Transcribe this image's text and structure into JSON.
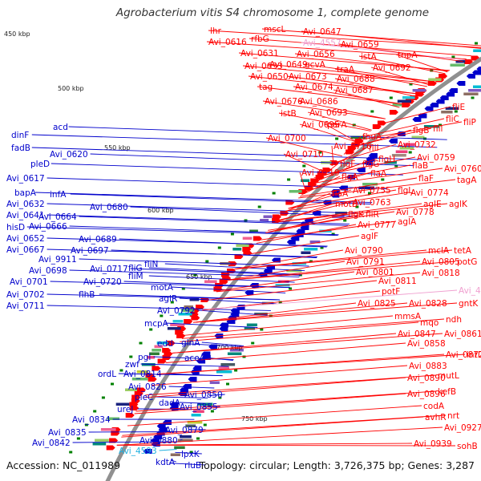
{
  "title": "Agrobacterium vitis S4 chromosome 1, complete genome",
  "footer": {
    "accession": "Accession: NC_011989",
    "stats": "Topology: circular; Length: 3,726,375 bp; Genes: 3,287"
  },
  "colors": {
    "forward_strand": "#ff0000",
    "reverse_strand": "#0000cc",
    "highlight_right": "#f0a0d0",
    "highlight_left": "#20b0e0",
    "backbone": "#909090",
    "tick_marks": "#008000"
  },
  "kbp_labels": [
    "450 kbp",
    "500 kbp",
    "550 kbp",
    "600 kbp",
    "650 kbp",
    "700 kbp",
    "750 kbp"
  ],
  "left_genes": [
    "dinF",
    "acd",
    "fadB",
    "pleD",
    "Avi_0620",
    "Avi_0617",
    "bapA",
    "infA",
    "Avi_0632",
    "Avi_0641",
    "hisD",
    "Avi_0664",
    "Avi_0666",
    "Avi_0680",
    "Avi_0652",
    "Avi_0667",
    "Avi_0689",
    "Avi_0697",
    "Avi_9911",
    "Avi_0698",
    "Avi_0701",
    "Avi_0717",
    "fliG",
    "fliN",
    "Avi_0720",
    "fliM",
    "Avi_0702",
    "Avi_0711",
    "flhB",
    "motA",
    "aglR",
    "Avi_0792",
    "mcpA",
    "edd",
    "glnA",
    "zwf",
    "pgl",
    "aceA",
    "ordL",
    "Avi_0814",
    "Avi_0826",
    "pleC",
    "Avi_0850",
    "dadA",
    "ureJ",
    "Avi_0855",
    "Avi_0834",
    "Avi_0835",
    "Avi_0879",
    "Avi_0842",
    "Avi_0880",
    "Avi_4593",
    "lpxK",
    "kdtA",
    "rluB"
  ],
  "right_genes": [
    "lhr",
    "mscL",
    "Avi_0647",
    "Avi_0616",
    "rfbG",
    "Avi_4557",
    "Avi_0659",
    "Avi_0631",
    "Avi_0656",
    "Avi_0633",
    "Avi_0649",
    "gcvA",
    "istA",
    "tnpA",
    "Avi_0650",
    "Avi_0673",
    "traA",
    "Avi_0692",
    "tag",
    "Avi_0674",
    "Avi_0688",
    "Avi_0687",
    "Avi_0676",
    "Avi_0686",
    "istB",
    "Avi_0693",
    "Avi_0695",
    "parA",
    "fliE",
    "fliC",
    "fliP",
    "flgB",
    "flil",
    "Avi_0700",
    "fhuA",
    "Avi_0716",
    "fliI",
    "Avi_0732",
    "Avi_0710",
    "flgH",
    "Avi_0759",
    "flgF",
    "flgG",
    "flaB",
    "Avi_0719",
    "flgA",
    "flaA",
    "Avi_0760",
    "flaF",
    "flaA",
    "Avi_0755",
    "flgL",
    "tagA",
    "motB",
    "Avi_0763",
    "Avi_0774",
    "flgK",
    "fliR",
    "Avi_0778",
    "aglE",
    "aglK",
    "Avi_0777",
    "aglA",
    "aglF",
    "Avi_0790",
    "mclA",
    "tetA",
    "Avi_0791",
    "Avi_0805",
    "potG",
    "Avi_0801",
    "Avi_0818",
    "Avi_0811",
    "potF",
    "Avi_4558",
    "Avi_0825",
    "Avi_0828",
    "gntK",
    "mmsA",
    "mqo",
    "ndh",
    "Avi_0847",
    "Avi_0861",
    "Avi_0858",
    "Avi_0872",
    "intD",
    "Avi_0883",
    "Avi_0890",
    "mutL",
    "Avi_0896",
    "kefB",
    "codA",
    "avhR",
    "nrt",
    "Avi_0927",
    "Avi_0939",
    "sohB"
  ]
}
